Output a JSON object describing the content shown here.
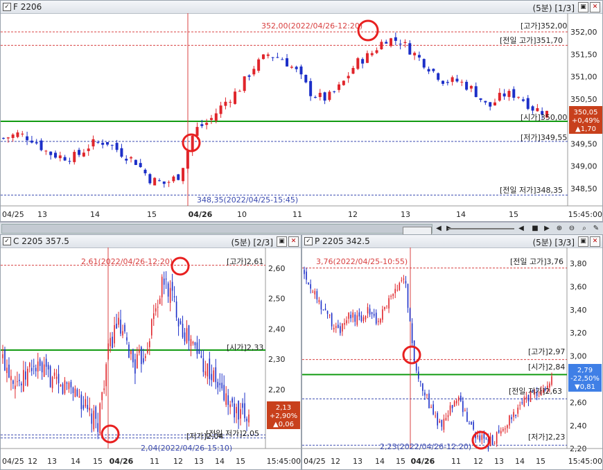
{
  "colors": {
    "up": "#e0252b",
    "down": "#1c2fc8",
    "open_line": "#129b12",
    "high_line": "#d84040",
    "low_line": "#3a4ab0",
    "marker": "#e82020",
    "badge_up": "#c8401c",
    "badge_down": "#3f7fe6"
  },
  "top": {
    "title": "F 2206",
    "period": "(5분) [1/3]",
    "y_ticks": [
      "352,00",
      "351,50",
      "351,00",
      "350,50",
      "350,00",
      "349,50",
      "349,00",
      "348,50"
    ],
    "x_ticks": [
      "04/25",
      "13",
      "14",
      "15",
      "04/26",
      "10",
      "11",
      "12",
      "13",
      "14",
      "15",
      "15:45:00"
    ],
    "ann_high": "352,00(2022/04/26-12:20)",
    "ann_low": "348,35(2022/04/25-15:45)",
    "lbl_high": "[고가]352,00",
    "lbl_prev_high": "[전일 고가]351,70",
    "lbl_open": "[시가]350,00",
    "lbl_low": "[저가]349,55",
    "lbl_prev_low": "[전일 저가]348,35",
    "badge": [
      "350,05",
      "+0,49%",
      "▲1,70"
    ]
  },
  "bottom_left": {
    "title": "C 2205 357.5",
    "period": "(5분) [2/3]",
    "y_ticks": [
      "2,60",
      "2,50",
      "2,40",
      "2,30",
      "2,20",
      "2,10"
    ],
    "x_ticks": [
      "04/25",
      "12",
      "13",
      "14",
      "15",
      "04/26",
      "11",
      "12",
      "13",
      "14",
      "15",
      "15:45:00"
    ],
    "ann_high": "2,61(2022/04/26-12:20)",
    "ann_low": "2,04(2022/04/26-15:10)",
    "lbl_high": "[고가]2,61",
    "lbl_open": "[시가]2,33",
    "lbl_low": "[저가]2,04",
    "lbl_prev_low": "[전일 저가]2,05",
    "badge": [
      "2,13",
      "+2,90%",
      "▲0,06"
    ]
  },
  "bottom_right": {
    "title": "P 2205 342.5",
    "period": "(5분) [3/3]",
    "y_ticks": [
      "3,80",
      "3,60",
      "3,40",
      "3,20",
      "3,00",
      "2,80",
      "2,60",
      "2,40",
      "2,20"
    ],
    "x_ticks": [
      "04/25",
      "12",
      "13",
      "14",
      "15",
      "04/26",
      "11",
      "12",
      "13",
      "14",
      "15",
      "15:45:00"
    ],
    "ann_high": "3,76(2022/04/25-10:55)",
    "ann_low": "2,23(2022/04/26-12:20)",
    "lbl_prev_high": "[전일 고가]3,76",
    "lbl_high": "[고가]2,97",
    "lbl_open": "[시가]2,84",
    "lbl_prev_low": "[전일 저가]2,63",
    "lbl_low": "[저가]2,23",
    "badge": [
      "2,79",
      "-22,50%",
      "▼0,81"
    ]
  }
}
